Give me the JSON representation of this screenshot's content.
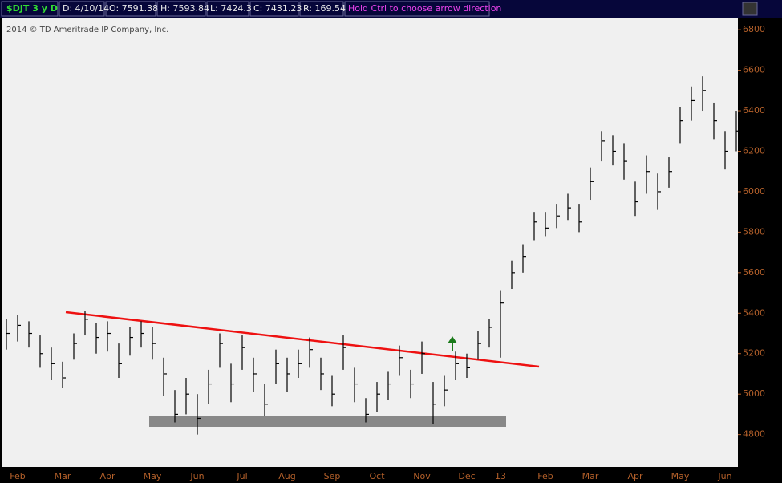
{
  "header": {
    "symbol": "$DJT 3 y D",
    "date": "D: 4/10/14",
    "open": "O: 7591.38",
    "high": "H: 7593.84",
    "low": "L: 7424.3",
    "close": "C: 7431.23",
    "range": "R: 169.54",
    "hint": "Hold Ctrl to choose arrow direction"
  },
  "chart_data": {
    "type": "ohlc",
    "subtitle": "2014 © TD Ameritrade IP Company, Inc.",
    "categories": [
      null,
      "Feb",
      null,
      null,
      null,
      "Mar",
      null,
      null,
      null,
      "Apr",
      null,
      null,
      null,
      "May",
      null,
      null,
      null,
      "Jun",
      null,
      null,
      null,
      "Jul",
      null,
      null,
      null,
      "Aug",
      null,
      null,
      null,
      "Sep",
      null,
      null,
      null,
      "Oct",
      null,
      null,
      null,
      "Nov",
      null,
      null,
      null,
      "Dec",
      null,
      null,
      "13",
      null,
      null,
      null,
      "Feb",
      null,
      null,
      null,
      "Mar",
      null,
      null,
      null,
      "Apr",
      null,
      null,
      null,
      "May",
      null,
      null,
      null,
      "Jun",
      null
    ],
    "series": [
      {
        "name": "high",
        "values": [
          5370,
          5390,
          5360,
          5290,
          5230,
          5160,
          5300,
          5410,
          5350,
          5360,
          5250,
          5330,
          5360,
          5330,
          5180,
          5020,
          5080,
          5000,
          5120,
          5300,
          5150,
          5290,
          5180,
          5050,
          5220,
          5180,
          5220,
          5280,
          5180,
          5090,
          5290,
          5130,
          4980,
          5060,
          5110,
          5240,
          5120,
          5260,
          5060,
          5090,
          5210,
          5200,
          5310,
          5370,
          5510,
          5660,
          5740,
          5900,
          5900,
          5940,
          5990,
          5940,
          6120,
          6300,
          6280,
          6240,
          6050,
          6180,
          6090,
          6170,
          6420,
          6520,
          6570,
          6440,
          6300,
          6400
        ]
      },
      {
        "name": "low",
        "values": [
          5220,
          5260,
          5230,
          5130,
          5070,
          5030,
          5170,
          5290,
          5200,
          5210,
          5080,
          5190,
          5230,
          5170,
          4990,
          4860,
          4900,
          4800,
          4950,
          5130,
          4960,
          5120,
          5010,
          4890,
          5050,
          5010,
          5080,
          5130,
          5020,
          4940,
          5120,
          4960,
          4860,
          4910,
          4970,
          5090,
          4980,
          5100,
          4850,
          4940,
          5070,
          5080,
          5170,
          5230,
          5180,
          5520,
          5600,
          5760,
          5780,
          5820,
          5860,
          5800,
          5960,
          6150,
          6130,
          6060,
          5880,
          5990,
          5910,
          6020,
          6240,
          6350,
          6400,
          6260,
          6110,
          6200
        ]
      },
      {
        "name": "close",
        "values": [
          5300,
          5340,
          5300,
          5200,
          5150,
          5080,
          5250,
          5370,
          5280,
          5300,
          5150,
          5280,
          5300,
          5250,
          5100,
          4900,
          5000,
          4880,
          5050,
          5250,
          5050,
          5230,
          5100,
          4950,
          5150,
          5100,
          5150,
          5220,
          5100,
          5000,
          5230,
          5050,
          4900,
          5000,
          5050,
          5180,
          5050,
          5200,
          4950,
          5020,
          5150,
          5130,
          5250,
          5330,
          5450,
          5600,
          5680,
          5850,
          5820,
          5880,
          5920,
          5850,
          6050,
          6250,
          6200,
          6150,
          5950,
          6100,
          6000,
          6100,
          6350,
          6450,
          6500,
          6350,
          6200,
          6300
        ]
      }
    ],
    "color": "#000000",
    "ylim": [
      4640,
      6860
    ],
    "yticks": [
      4800,
      5000,
      5200,
      5400,
      5600,
      5800,
      6000,
      6200,
      6400,
      6600,
      6800
    ]
  }
}
